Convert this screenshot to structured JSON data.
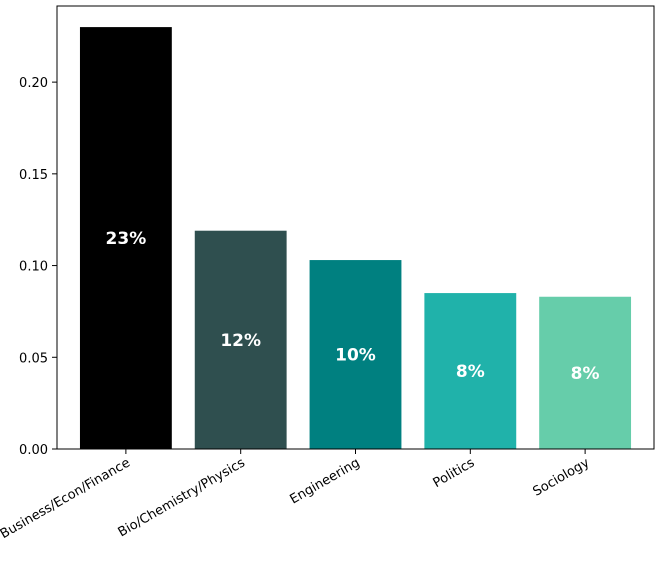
{
  "chart_data": {
    "type": "bar",
    "categories": [
      "Business/Econ/Finance",
      "Bio/Chemistry/Physics",
      "Engineering",
      "Politics",
      "Sociology"
    ],
    "values": [
      0.23,
      0.119,
      0.103,
      0.085,
      0.083
    ],
    "data_labels": [
      "23%",
      "12%",
      "10%",
      "8%",
      "8%"
    ],
    "colors": [
      "#000000",
      "#2f4f4f",
      "#008080",
      "#20b2aa",
      "#66cdaa"
    ],
    "title": "",
    "xlabel": "",
    "ylabel": "",
    "ylim": [
      0,
      0.2415
    ],
    "yticks": [
      0.0,
      0.05,
      0.1,
      0.15,
      0.2
    ],
    "ytick_labels": [
      "0.00",
      "0.05",
      "0.10",
      "0.15",
      "0.20"
    ],
    "grid": false,
    "legend": false
  }
}
